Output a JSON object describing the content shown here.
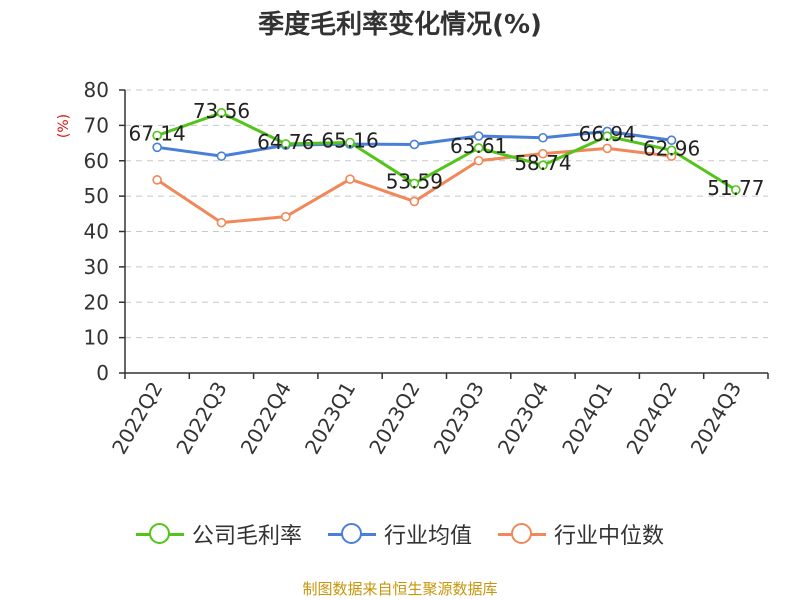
{
  "title": "季度毛利率变化情况(%)",
  "source": "制图数据来自恒生聚源数据库",
  "chart_data": {
    "type": "line",
    "title": "季度毛利率变化情况(%)",
    "ylabel": "(%)",
    "xlabel": "",
    "ylim": [
      0,
      80
    ],
    "yticks": [
      0,
      10,
      20,
      30,
      40,
      50,
      60,
      70,
      80
    ],
    "grid": true,
    "legend_position": "bottom",
    "categories": [
      "2022Q2",
      "2022Q3",
      "2022Q4",
      "2023Q1",
      "2023Q2",
      "2023Q3",
      "2023Q4",
      "2024Q1",
      "2024Q2",
      "2024Q3"
    ],
    "series": [
      {
        "name": "公司毛利率",
        "color": "#52c41a",
        "values": [
          67.14,
          73.56,
          64.76,
          65.16,
          53.59,
          63.61,
          58.74,
          66.94,
          62.96,
          51.77
        ],
        "labels": [
          "67.14",
          "73.56",
          "64.76",
          "65.16",
          "53.59",
          "63.61",
          "58.74",
          "66.94",
          "62.96",
          "51.77"
        ]
      },
      {
        "name": "行业均值",
        "color": "#4a7fd8",
        "values": [
          63.8,
          61.3,
          64.4,
          64.7,
          64.6,
          67.0,
          66.5,
          68.3,
          65.8,
          null
        ]
      },
      {
        "name": "行业中位数",
        "color": "#f0885a",
        "values": [
          54.6,
          42.5,
          44.2,
          54.8,
          48.5,
          60.0,
          62.0,
          63.5,
          61.3,
          null
        ]
      }
    ]
  }
}
